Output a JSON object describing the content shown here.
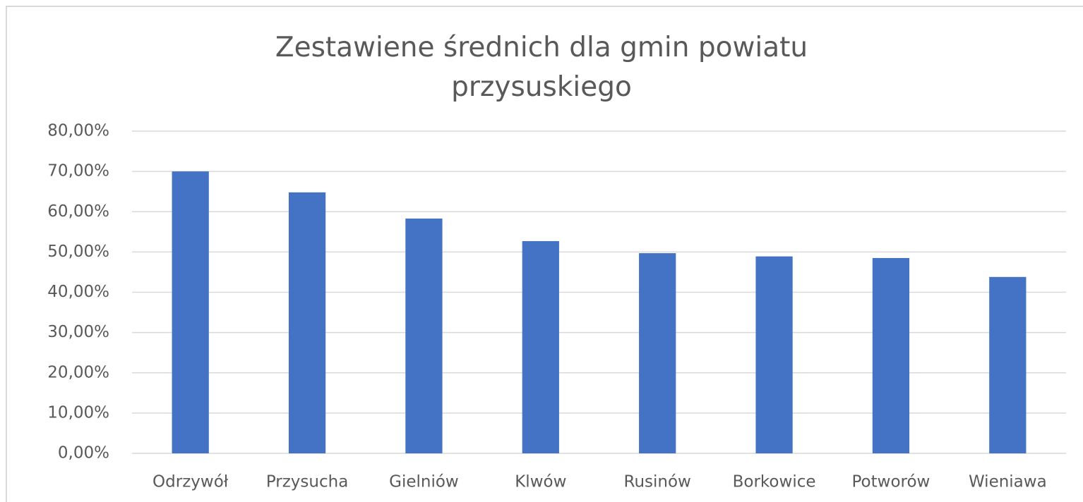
{
  "chart_data": {
    "type": "bar",
    "title": "Zestawiene średnich  dla gmin powiatu przysuskiego",
    "categories": [
      "Odrzywół",
      "Przysucha",
      "Gielniów",
      "Klwów",
      "Rusinów",
      "Borkowice",
      "Potworów",
      "Wieniawa"
    ],
    "values": [
      70.0,
      64.8,
      58.3,
      52.7,
      49.7,
      48.9,
      48.5,
      43.8
    ],
    "color": "#4472c4",
    "ylim": [
      0,
      80
    ],
    "yticks": [
      {
        "value": 0,
        "label": "0,00%"
      },
      {
        "value": 10,
        "label": "10,00%"
      },
      {
        "value": 20,
        "label": "20,00%"
      },
      {
        "value": 30,
        "label": "30,00%"
      },
      {
        "value": 40,
        "label": "40,00%"
      },
      {
        "value": 50,
        "label": "50,00%"
      },
      {
        "value": 60,
        "label": "60,00%"
      },
      {
        "value": 70,
        "label": "70,00%"
      },
      {
        "value": 80,
        "label": "80,00%"
      }
    ],
    "grid": true
  }
}
